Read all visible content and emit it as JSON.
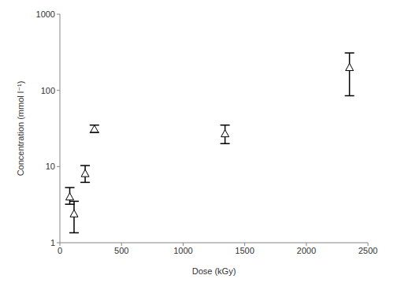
{
  "chart_data": {
    "type": "scatter",
    "x_label": "Dose (kGy)",
    "y_label": "Concentration (mmol l⁻¹)",
    "x": [
      80,
      115,
      205,
      280,
      1340,
      2350
    ],
    "values": [
      4.0,
      2.4,
      8.1,
      31,
      27,
      200
    ],
    "error_low": [
      3.2,
      1.35,
      6.2,
      28,
      20,
      85
    ],
    "error_high": [
      5.3,
      3.5,
      10.3,
      35,
      35,
      310
    ],
    "xlim": [
      0,
      2500
    ],
    "xticks": [
      0,
      500,
      1000,
      1500,
      2000,
      2500
    ],
    "ylim": [
      1,
      1000
    ],
    "yticks": [
      1,
      10,
      100,
      1000
    ],
    "log": "y",
    "grid": false,
    "marker": "triangle",
    "color": "#000000"
  }
}
